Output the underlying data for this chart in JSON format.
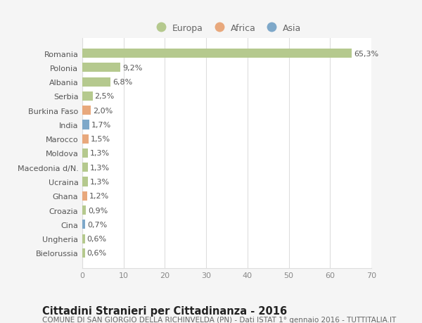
{
  "countries": [
    "Romania",
    "Polonia",
    "Albania",
    "Serbia",
    "Burkina Faso",
    "India",
    "Marocco",
    "Moldova",
    "Macedonia d/N.",
    "Ucraina",
    "Ghana",
    "Croazia",
    "Cina",
    "Ungheria",
    "Bielorussia"
  ],
  "values": [
    65.3,
    9.2,
    6.8,
    2.5,
    2.0,
    1.7,
    1.5,
    1.3,
    1.3,
    1.3,
    1.2,
    0.9,
    0.7,
    0.6,
    0.6
  ],
  "labels": [
    "65,3%",
    "9,2%",
    "6,8%",
    "2,5%",
    "2,0%",
    "1,7%",
    "1,5%",
    "1,3%",
    "1,3%",
    "1,3%",
    "1,2%",
    "0,9%",
    "0,7%",
    "0,6%",
    "0,6%"
  ],
  "continents": [
    "Europa",
    "Europa",
    "Europa",
    "Europa",
    "Africa",
    "Asia",
    "Africa",
    "Europa",
    "Europa",
    "Europa",
    "Africa",
    "Europa",
    "Asia",
    "Europa",
    "Europa"
  ],
  "colors": {
    "Europa": "#b5c98e",
    "Africa": "#e8a87c",
    "Asia": "#7ea8c9"
  },
  "xlim": [
    0,
    70
  ],
  "xticks": [
    0,
    10,
    20,
    30,
    40,
    50,
    60,
    70
  ],
  "title": "Cittadini Stranieri per Cittadinanza - 2016",
  "subtitle": "COMUNE DI SAN GIORGIO DELLA RICHINVELDA (PN) - Dati ISTAT 1° gennaio 2016 - TUTTITALIA.IT",
  "background_color": "#f5f5f5",
  "plot_bg_color": "#ffffff",
  "grid_color": "#dddddd",
  "title_fontsize": 10.5,
  "subtitle_fontsize": 7.5,
  "label_fontsize": 8,
  "tick_fontsize": 8,
  "legend_fontsize": 9
}
